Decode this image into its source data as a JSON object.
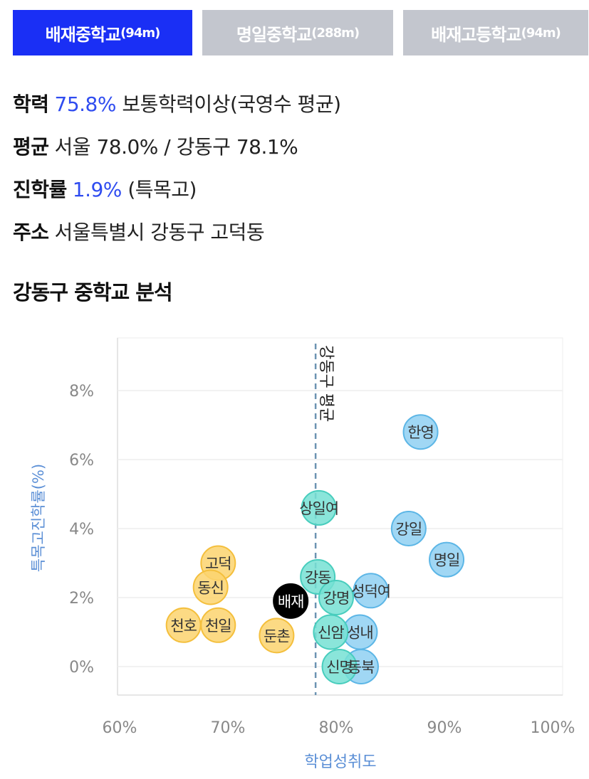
{
  "tabs": [
    {
      "name": "배재중학교",
      "dist": "(94m)",
      "active": true
    },
    {
      "name": "명일중학교",
      "dist": "(288m)",
      "active": false
    },
    {
      "name": "배재고등학교",
      "dist": "(94m)",
      "active": false
    }
  ],
  "info": {
    "r1": {
      "label": "학력",
      "value": "75.8%",
      "rest": "보통학력이상(국영수 평균)"
    },
    "r2": {
      "label": "평균",
      "rest": "서울 78.0% / 강동구 78.1%"
    },
    "r3": {
      "label": "진학률",
      "value": "1.9%",
      "rest": "(특목고)"
    },
    "r4": {
      "label": "주소",
      "rest": "서울특별시 강동구 고덕동"
    }
  },
  "section_title": "강동구 중학교 분석",
  "colors": {
    "yellow": "#fcd36f",
    "yellow_stroke": "#f4bf3c",
    "teal": "#76e0d4",
    "teal_stroke": "#48cdbd",
    "blue": "#8fd0f2",
    "blue_stroke": "#5cb6e6",
    "black": "#000000",
    "axis_title": "#5b8fd6",
    "refline": "#6c93b2"
  },
  "chart_data": {
    "type": "scatter",
    "xlabel": "학업성취도",
    "ylabel": "특목고진학률(%)",
    "xlim": [
      60,
      100
    ],
    "ylim": [
      -0.8,
      9.5
    ],
    "xticks": [
      "60%",
      "70%",
      "80%",
      "90%",
      "100%"
    ],
    "xtick_values": [
      60,
      70,
      80,
      90,
      100
    ],
    "yticks": [
      "0%",
      "2%",
      "4%",
      "6%",
      "8%"
    ],
    "ytick_values": [
      0,
      2,
      4,
      6,
      8
    ],
    "grid": true,
    "reference_line": {
      "x": 78.1,
      "label": "강동구 평균"
    },
    "points": [
      {
        "label": "한영",
        "x": 87.8,
        "y": 6.8,
        "group": "blue"
      },
      {
        "label": "상일여",
        "x": 78.4,
        "y": 4.6,
        "group": "teal"
      },
      {
        "label": "강일",
        "x": 86.7,
        "y": 4.0,
        "group": "blue"
      },
      {
        "label": "명일",
        "x": 90.2,
        "y": 3.1,
        "group": "blue"
      },
      {
        "label": "고덕",
        "x": 69.1,
        "y": 3.0,
        "group": "yellow"
      },
      {
        "label": "강동",
        "x": 78.3,
        "y": 2.6,
        "group": "teal"
      },
      {
        "label": "동신",
        "x": 68.4,
        "y": 2.3,
        "group": "yellow"
      },
      {
        "label": "성덕여",
        "x": 83.2,
        "y": 2.2,
        "group": "blue"
      },
      {
        "label": "강명",
        "x": 80.0,
        "y": 2.0,
        "group": "teal"
      },
      {
        "label": "배재",
        "x": 75.8,
        "y": 1.9,
        "group": "black"
      },
      {
        "label": "천호",
        "x": 65.9,
        "y": 1.2,
        "group": "yellow"
      },
      {
        "label": "천일",
        "x": 69.1,
        "y": 1.2,
        "group": "yellow"
      },
      {
        "label": "둔촌",
        "x": 74.5,
        "y": 0.9,
        "group": "yellow"
      },
      {
        "label": "성내",
        "x": 82.2,
        "y": 1.0,
        "group": "blue"
      },
      {
        "label": "신암",
        "x": 79.5,
        "y": 1.0,
        "group": "teal"
      },
      {
        "label": "동북",
        "x": 82.3,
        "y": 0.0,
        "group": "blue"
      },
      {
        "label": "신명",
        "x": 80.3,
        "y": 0.0,
        "group": "teal"
      }
    ]
  }
}
